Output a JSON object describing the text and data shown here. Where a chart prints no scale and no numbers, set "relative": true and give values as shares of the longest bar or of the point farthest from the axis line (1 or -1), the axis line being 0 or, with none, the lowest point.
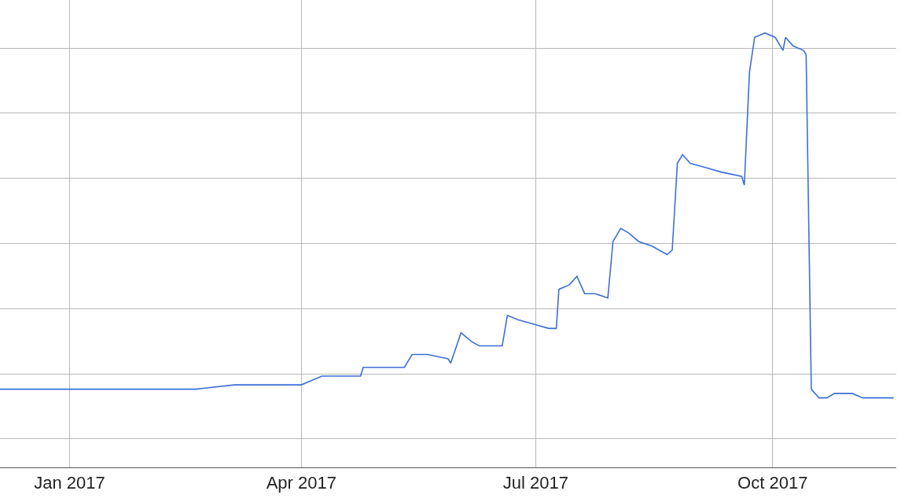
{
  "chart_data": {
    "type": "line",
    "relative": true,
    "grid": true,
    "marker": "none",
    "line_style": "solid",
    "xlim": [
      "2016-12-05",
      "2017-11-18"
    ],
    "xticks": [
      {
        "value": "2017-01-01",
        "label": "Jan 2017"
      },
      {
        "value": "2017-04-01",
        "label": "Apr 2017"
      },
      {
        "value": "2017-07-01",
        "label": "Jul 2017"
      },
      {
        "value": "2017-10-01",
        "label": "Oct 2017"
      }
    ],
    "x": [
      "2016-12-05",
      "2016-12-11",
      "2016-12-20",
      "2017-01-01",
      "2017-01-19",
      "2017-02-03",
      "2017-02-19",
      "2017-03-06",
      "2017-03-21",
      "2017-04-01",
      "2017-04-09",
      "2017-04-18",
      "2017-04-24",
      "2017-04-25",
      "2017-04-30",
      "2017-05-06",
      "2017-05-11",
      "2017-05-14",
      "2017-05-20",
      "2017-05-28",
      "2017-05-29",
      "2017-06-02",
      "2017-06-06",
      "2017-06-09",
      "2017-06-15",
      "2017-06-18",
      "2017-06-20",
      "2017-06-24",
      "2017-06-30",
      "2017-07-06",
      "2017-07-09",
      "2017-07-10",
      "2017-07-14",
      "2017-07-17",
      "2017-07-20",
      "2017-07-24",
      "2017-07-29",
      "2017-07-31",
      "2017-08-03",
      "2017-08-06",
      "2017-08-10",
      "2017-08-15",
      "2017-08-21",
      "2017-08-23",
      "2017-08-25",
      "2017-08-27",
      "2017-08-30",
      "2017-09-05",
      "2017-09-11",
      "2017-09-19",
      "2017-09-20",
      "2017-09-22",
      "2017-09-24",
      "2017-09-28",
      "2017-10-02",
      "2017-10-05",
      "2017-10-06",
      "2017-10-09",
      "2017-10-13",
      "2017-10-14",
      "2017-10-16",
      "2017-10-19",
      "2017-10-22",
      "2017-10-25",
      "2017-11-01",
      "2017-11-05",
      "2017-11-11",
      "2017-11-17"
    ],
    "series": [
      {
        "color": "#3c6fd6",
        "values": [
          0.18,
          0.18,
          0.18,
          0.18,
          0.18,
          0.18,
          0.18,
          0.19,
          0.19,
          0.19,
          0.21,
          0.21,
          0.21,
          0.23,
          0.23,
          0.23,
          0.23,
          0.26,
          0.26,
          0.25,
          0.24,
          0.31,
          0.29,
          0.28,
          0.28,
          0.28,
          0.35,
          0.34,
          0.33,
          0.32,
          0.32,
          0.41,
          0.42,
          0.44,
          0.4,
          0.4,
          0.39,
          0.52,
          0.55,
          0.54,
          0.52,
          0.51,
          0.49,
          0.5,
          0.7,
          0.72,
          0.7,
          0.69,
          0.68,
          0.67,
          0.65,
          0.91,
          0.99,
          1.0,
          0.99,
          0.96,
          0.99,
          0.97,
          0.96,
          0.95,
          0.18,
          0.16,
          0.16,
          0.17,
          0.17,
          0.16,
          0.16,
          0.16
        ]
      }
    ]
  }
}
